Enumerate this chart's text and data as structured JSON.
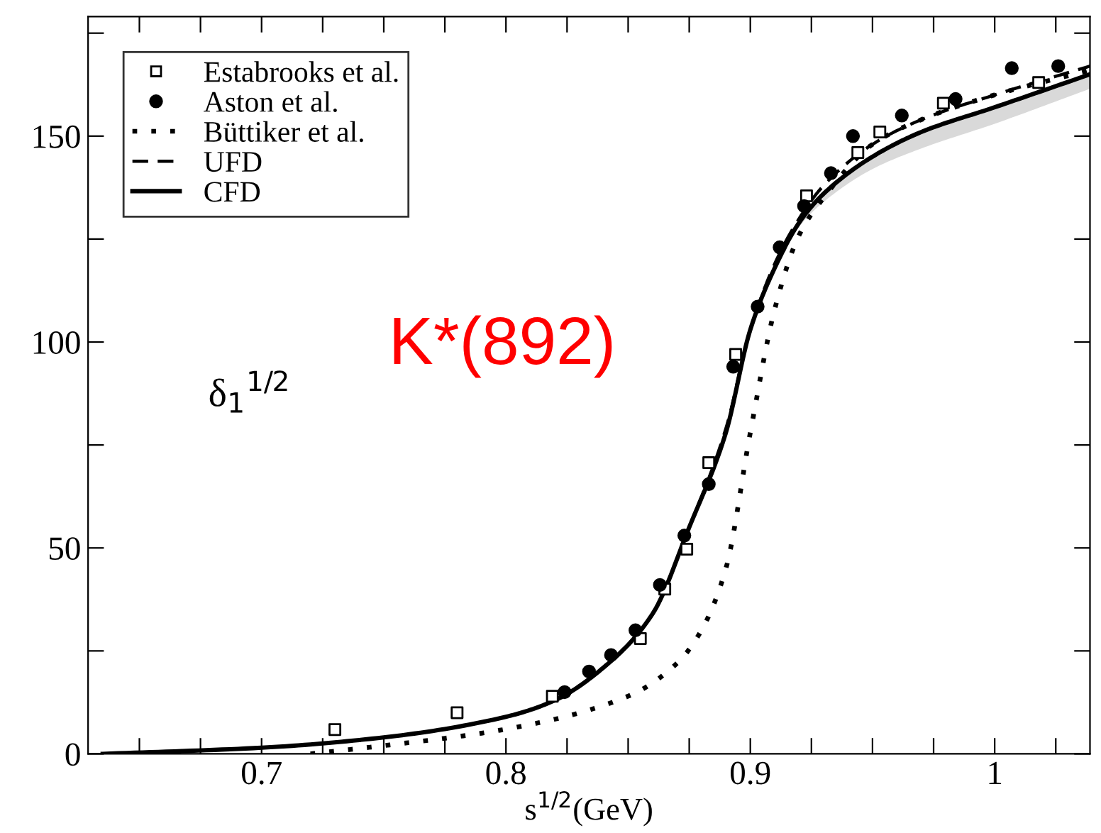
{
  "chart_data": {
    "type": "line",
    "xlabel": "s$^{1/2}$(GeV)",
    "xlim": [
      0.629,
      1.039
    ],
    "ylim": [
      0,
      179
    ],
    "xticks": [
      {
        "value": 0.65,
        "label": null
      },
      {
        "value": 0.675,
        "label": null
      },
      0.7,
      {
        "value": 0.725,
        "label": null
      },
      {
        "value": 0.75,
        "label": null
      },
      {
        "value": 0.775,
        "label": null
      },
      0.8,
      {
        "value": 0.825,
        "label": null
      },
      {
        "value": 0.85,
        "label": null
      },
      {
        "value": 0.875,
        "label": null
      },
      0.9,
      {
        "value": 0.925,
        "label": null
      },
      {
        "value": 0.95,
        "label": null
      },
      {
        "value": 0.975,
        "label": null
      },
      1,
      {
        "value": 1.025,
        "label": null
      }
    ],
    "yticks": [
      0,
      {
        "value": 25,
        "label": null
      },
      50,
      {
        "value": 75,
        "label": null
      },
      100,
      {
        "value": 125,
        "label": null
      },
      150,
      {
        "value": 175,
        "label": null
      }
    ],
    "grid": false,
    "legend": "top left",
    "series": [
      {
        "name": "Estabrooks et al.",
        "type": "scatter",
        "marker": "square",
        "color": "#000000",
        "x": [
          0.73,
          0.78,
          0.819,
          0.855,
          0.865,
          0.874,
          0.883,
          0.894,
          0.923,
          0.944,
          0.953,
          0.979,
          1.018
        ],
        "values": [
          5.9,
          10,
          14,
          28,
          40,
          49.7,
          70.7,
          97,
          135.5,
          146,
          151,
          158,
          163
        ]
      },
      {
        "name": "Aston et al.",
        "type": "scatter",
        "marker": "circle",
        "color": "#000000",
        "x": [
          0.824,
          0.834,
          0.843,
          0.853,
          0.863,
          0.873,
          0.883,
          0.893,
          0.903,
          0.912,
          0.922,
          0.933,
          0.942,
          0.962,
          0.984,
          1.007,
          1.026
        ],
        "values": [
          15,
          20,
          24,
          30,
          41,
          53,
          65.5,
          94,
          108.6,
          123,
          133,
          141,
          150,
          155,
          159,
          166.5,
          167
        ]
      },
      {
        "name": "Büttiker et al.",
        "line_style": "dotted",
        "color": "#000000",
        "x": [
          0.72,
          0.75,
          0.8,
          0.85,
          0.87,
          0.88,
          0.89,
          0.9,
          0.91,
          0.92,
          0.93,
          0.95,
          0.97,
          1.0,
          1.039
        ],
        "values": [
          0,
          2,
          6,
          14,
          22,
          30,
          45,
          78,
          108,
          126,
          135,
          148,
          154,
          160,
          166
        ]
      },
      {
        "name": "UFD",
        "line_style": "dashed",
        "color": "#000000",
        "x": [
          0.635,
          0.7,
          0.75,
          0.8,
          0.82,
          0.84,
          0.86,
          0.875,
          0.89,
          0.9,
          0.91,
          0.92,
          0.93,
          0.95,
          0.97,
          1.0,
          1.039
        ],
        "values": [
          0,
          1.5,
          4,
          9,
          13,
          21,
          34,
          55,
          79,
          103,
          119,
          130,
          138,
          148,
          154,
          160,
          167
        ]
      },
      {
        "name": "CFD",
        "line_style": "solid",
        "color": "#000000",
        "x": [
          0.635,
          0.7,
          0.75,
          0.8,
          0.82,
          0.84,
          0.86,
          0.875,
          0.89,
          0.9,
          0.91,
          0.92,
          0.93,
          0.95,
          0.97,
          1.0,
          1.039
        ],
        "values": [
          0,
          1.5,
          4,
          9,
          13,
          21,
          34,
          55,
          78,
          103,
          118,
          129,
          136,
          145,
          151,
          157,
          165
        ],
        "lower": [
          0,
          1.5,
          4,
          9,
          13,
          21,
          34,
          55,
          78,
          103,
          118,
          128,
          134,
          142,
          147,
          153,
          161.5
        ],
        "upper": [
          0,
          1.5,
          4,
          9,
          13,
          21,
          34,
          55,
          78,
          103,
          118,
          129,
          136,
          145,
          151,
          157,
          165
        ]
      }
    ],
    "annotations": [
      "K*(892)",
      "δ$_{1}$$^{1/2}$"
    ]
  }
}
